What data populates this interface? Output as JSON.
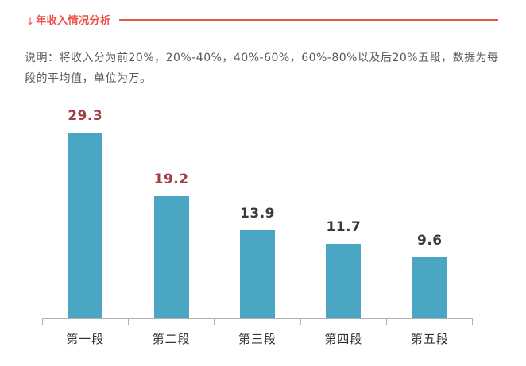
{
  "header": {
    "arrow_icon": "↓",
    "title": "年收入情况分析",
    "accent_color": "#ee4c44"
  },
  "description": "说明：将收入分为前20%，20%-40%，40%-60%，60%-80%以及后20%五段，数据为每段的平均值，单位为万。",
  "chart_data": {
    "type": "bar",
    "categories": [
      "第一段",
      "第二段",
      "第三段",
      "第四段",
      "第五段"
    ],
    "values": [
      29.3,
      19.2,
      13.9,
      11.7,
      9.6
    ],
    "value_labels": [
      "29.3",
      "19.2",
      "13.9",
      "11.7",
      "9.6"
    ],
    "value_label_colors": [
      "#a33d43",
      "#a33d43",
      "#3a3a3a",
      "#3a3a3a",
      "#3a3a3a"
    ],
    "bar_color": "#4aa6c3",
    "axis_color": "#b0b0b0",
    "title": "",
    "xlabel": "",
    "ylabel": "",
    "ylim": [
      0,
      31
    ],
    "grid": false,
    "legend": false
  }
}
